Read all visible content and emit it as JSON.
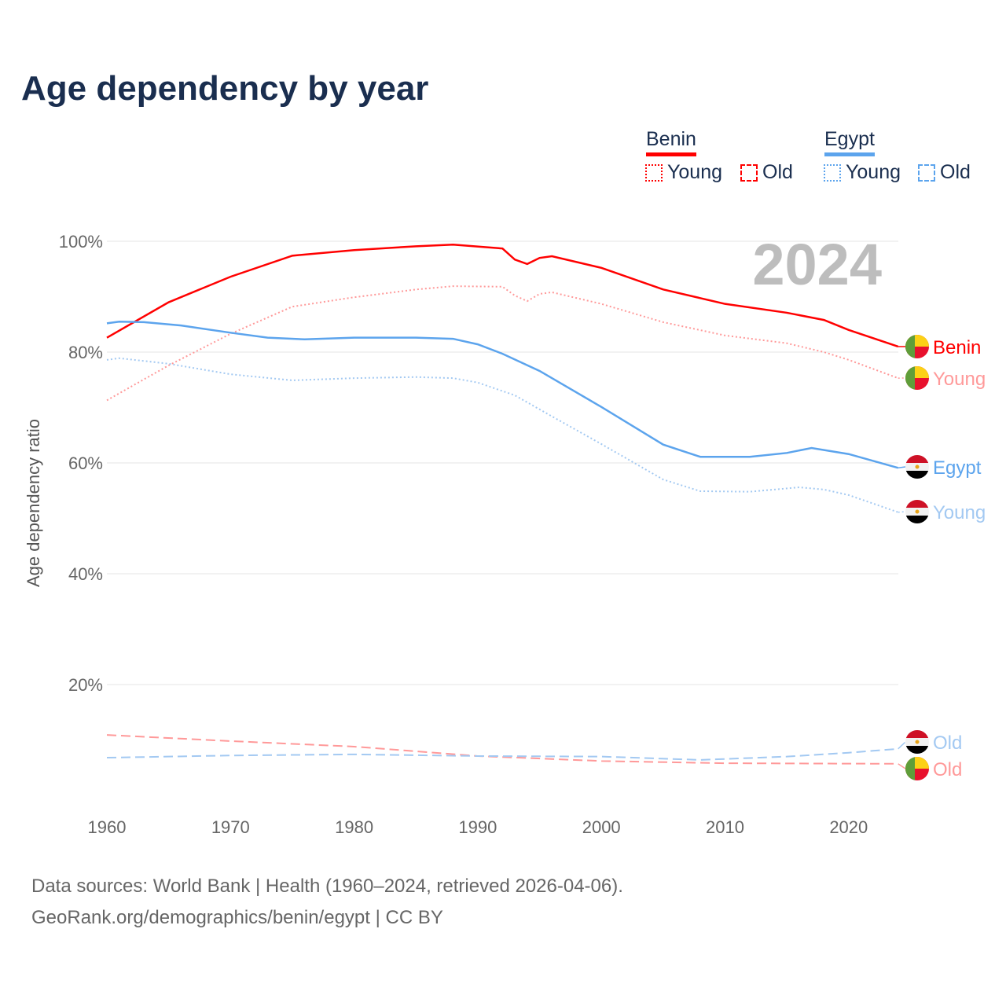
{
  "title": "Age dependency by year",
  "legend": {
    "benin": "Benin",
    "egypt": "Egypt",
    "young": "Young",
    "old": "Old"
  },
  "source": {
    "line1": "Data sources: World Bank | Health (1960–2024, retrieved 2026-04-06).",
    "line2": "GeoRank.org/demographics/benin/egypt | CC BY"
  },
  "chart_data": {
    "type": "line",
    "title": "Age dependency by year",
    "ylabel": "Age dependency ratio",
    "xlim": [
      1960,
      2024
    ],
    "ylim": [
      0,
      100
    ],
    "x_ticks": [
      "1960",
      "1970",
      "1980",
      "1990",
      "2000",
      "2010",
      "2020"
    ],
    "y_ticks": [
      "20%",
      "40%",
      "60%",
      "80%",
      "100%"
    ],
    "year_label": "2024",
    "colors": {
      "benin": "#ff0000",
      "benin_light": "#ff9999",
      "egypt": "#5ca4ed",
      "egypt_light": "#a3c9f2"
    },
    "series": [
      {
        "name": "Benin",
        "country": "Benin",
        "kind": "total",
        "end_label": "Benin",
        "points": [
          [
            1960,
            82.6
          ],
          [
            1965,
            89
          ],
          [
            1970,
            93.6
          ],
          [
            1975,
            97.4
          ],
          [
            1980,
            98.4
          ],
          [
            1985,
            99.1
          ],
          [
            1988,
            99.4
          ],
          [
            1992,
            98.7
          ],
          [
            1993,
            96.7
          ],
          [
            1994,
            95.9
          ],
          [
            1995,
            97
          ],
          [
            1996,
            97.3
          ],
          [
            2000,
            95.2
          ],
          [
            2005,
            91.3
          ],
          [
            2010,
            88.7
          ],
          [
            2015,
            87.1
          ],
          [
            2018,
            85.8
          ],
          [
            2020,
            84
          ],
          [
            2024,
            81
          ]
        ]
      },
      {
        "name": "Benin Young",
        "country": "Benin",
        "kind": "young",
        "end_label": "Young",
        "points": [
          [
            1960,
            71.3
          ],
          [
            1965,
            77.6
          ],
          [
            1970,
            83.3
          ],
          [
            1975,
            88.2
          ],
          [
            1980,
            89.9
          ],
          [
            1985,
            91.3
          ],
          [
            1988,
            91.9
          ],
          [
            1992,
            91.8
          ],
          [
            1993,
            90.2
          ],
          [
            1994,
            89.2
          ],
          [
            1995,
            90.5
          ],
          [
            1996,
            90.8
          ],
          [
            2000,
            88.7
          ],
          [
            2005,
            85.4
          ],
          [
            2010,
            83
          ],
          [
            2015,
            81.6
          ],
          [
            2018,
            80
          ],
          [
            2020,
            78.6
          ],
          [
            2024,
            75.3
          ]
        ]
      },
      {
        "name": "Benin Old",
        "country": "Benin",
        "kind": "old",
        "end_label": "Old",
        "points": [
          [
            1960,
            10.9
          ],
          [
            1970,
            9.8
          ],
          [
            1980,
            8.8
          ],
          [
            1990,
            7.1
          ],
          [
            2000,
            6.2
          ],
          [
            2010,
            5.8
          ],
          [
            2024,
            5.7
          ]
        ]
      },
      {
        "name": "Egypt",
        "country": "Egypt",
        "kind": "total",
        "end_label": "Egypt",
        "points": [
          [
            1960,
            85.2
          ],
          [
            1961,
            85.5
          ],
          [
            1963,
            85.4
          ],
          [
            1966,
            84.8
          ],
          [
            1970,
            83.5
          ],
          [
            1973,
            82.6
          ],
          [
            1976,
            82.3
          ],
          [
            1980,
            82.6
          ],
          [
            1985,
            82.6
          ],
          [
            1988,
            82.4
          ],
          [
            1990,
            81.4
          ],
          [
            1992,
            79.7
          ],
          [
            1995,
            76.6
          ],
          [
            2000,
            70.1
          ],
          [
            2005,
            63.3
          ],
          [
            2008,
            61.1
          ],
          [
            2012,
            61.1
          ],
          [
            2015,
            61.8
          ],
          [
            2017,
            62.7
          ],
          [
            2020,
            61.6
          ],
          [
            2024,
            59.1
          ]
        ]
      },
      {
        "name": "Egypt Young",
        "country": "Egypt",
        "kind": "young",
        "end_label": "Young",
        "points": [
          [
            1960,
            78.6
          ],
          [
            1961,
            78.9
          ],
          [
            1965,
            77.9
          ],
          [
            1970,
            76
          ],
          [
            1975,
            74.9
          ],
          [
            1980,
            75.3
          ],
          [
            1985,
            75.5
          ],
          [
            1988,
            75.3
          ],
          [
            1990,
            74.5
          ],
          [
            1993,
            72.2
          ],
          [
            1996,
            68.4
          ],
          [
            2000,
            63.4
          ],
          [
            2005,
            57
          ],
          [
            2008,
            54.9
          ],
          [
            2012,
            54.8
          ],
          [
            2016,
            55.6
          ],
          [
            2018,
            55.2
          ],
          [
            2020,
            54.2
          ],
          [
            2024,
            51.1
          ]
        ]
      },
      {
        "name": "Egypt Old",
        "country": "Egypt",
        "kind": "old",
        "end_label": "Old",
        "points": [
          [
            1960,
            6.8
          ],
          [
            1970,
            7.2
          ],
          [
            1980,
            7.4
          ],
          [
            1990,
            7.1
          ],
          [
            2000,
            7
          ],
          [
            2008,
            6.4
          ],
          [
            2015,
            7
          ],
          [
            2020,
            7.7
          ],
          [
            2024,
            8.4
          ]
        ]
      }
    ]
  }
}
